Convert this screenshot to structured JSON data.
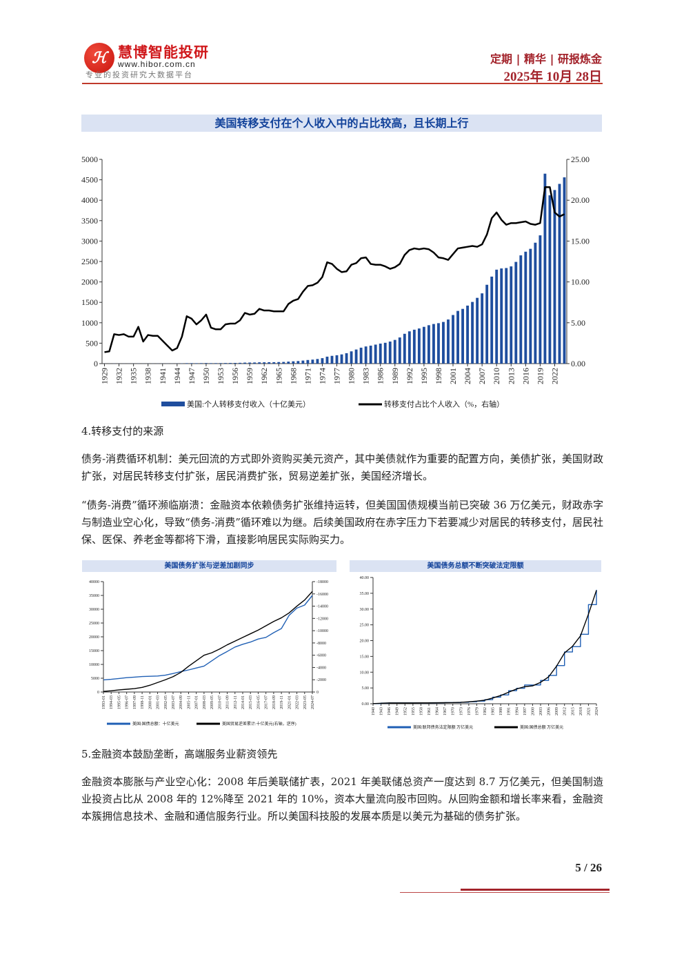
{
  "header": {
    "logo_mark": "HB",
    "brand": "慧博智能投研",
    "url": "www.hibor.com.cn",
    "slogan": "专业的投资研究大数据平台",
    "tagline": "定期 | 精华 | 研报炼金",
    "date": "2025年 10月 28日"
  },
  "colors": {
    "accent": "#a3232b",
    "bar": "#1f4e9e",
    "line": "#000000",
    "banner_bg": "#dbe3f3",
    "banner_text": "#12429a"
  },
  "chart_data": [
    {
      "type": "bar+line",
      "title": "美国转移支付在个人收入中的占比较高，且长期上行",
      "x_start": 1929,
      "x_tick_labels": [
        "1929",
        "1932",
        "1935",
        "1938",
        "1941",
        "1944",
        "1947",
        "1950",
        "1953",
        "1956",
        "1959",
        "1962",
        "1965",
        "1968",
        "1971",
        "1974",
        "1977",
        "1980",
        "1983",
        "1986",
        "1989",
        "1992",
        "1995",
        "1998",
        "2001",
        "2004",
        "2007",
        "2010",
        "2013",
        "2016",
        "2019",
        "2022"
      ],
      "y_left": {
        "min": 0,
        "max": 5000,
        "ticks": [
          "0",
          "500",
          "1000",
          "1500",
          "2000",
          "2500",
          "3000",
          "3500",
          "4000",
          "4500",
          "5000"
        ]
      },
      "y_right": {
        "min": 0,
        "max": 25,
        "ticks": [
          "0.00",
          "5.00",
          "10.00",
          "15.00",
          "20.00",
          "25.00"
        ]
      },
      "series": [
        {
          "name": "美国:个人转移支付收入（十亿美元）",
          "type": "bar",
          "axis": "left",
          "values": [
            1.4,
            1.5,
            2.8,
            2.2,
            2.0,
            2.0,
            2.2,
            3.2,
            2.2,
            2.6,
            2.5,
            2.7,
            2.8,
            2.7,
            2.6,
            3.4,
            5.8,
            11.1,
            11.7,
            10.6,
            12.1,
            14.3,
            11.6,
            12.1,
            12.9,
            15.1,
            16.1,
            17.1,
            19.6,
            24.4,
            25.8,
            27.6,
            31.6,
            32.5,
            34.2,
            35.4,
            38.0,
            41.1,
            48.6,
            56.1,
            62.3,
            74.7,
            88.1,
            97.9,
            112.6,
            133.3,
            170,
            190,
            205,
            225,
            255,
            300,
            345,
            390,
            420,
            440,
            465,
            490,
            510,
            540,
            580,
            640,
            730,
            790,
            830,
            860,
            900,
            940,
            970,
            990,
            1020,
            1080,
            1190,
            1290,
            1340,
            1420,
            1510,
            1610,
            1720,
            1930,
            2130,
            2300,
            2330,
            2340,
            2380,
            2490,
            2650,
            2740,
            2810,
            2960,
            3140,
            4650,
            4120,
            4250,
            4400,
            4560
          ]
        },
        {
          "name": "转移支付占比个人收入（%，右轴）",
          "type": "line",
          "axis": "right",
          "values": [
            1.4,
            1.5,
            3.6,
            3.5,
            3.6,
            3.3,
            3.3,
            4.5,
            2.7,
            3.5,
            3.4,
            3.4,
            2.8,
            2.2,
            1.6,
            1.9,
            3.3,
            5.8,
            5.5,
            4.8,
            5.3,
            6.0,
            4.4,
            4.2,
            4.2,
            4.8,
            4.9,
            4.9,
            5.3,
            6.2,
            6.0,
            6.1,
            6.7,
            6.5,
            6.5,
            6.4,
            6.4,
            6.4,
            7.3,
            7.7,
            7.9,
            8.8,
            9.5,
            9.6,
            9.9,
            10.6,
            12.4,
            12.2,
            11.6,
            11.2,
            11.3,
            12.1,
            12.3,
            12.9,
            13.0,
            12.2,
            12.1,
            12.1,
            11.9,
            11.6,
            11.8,
            12.2,
            13.3,
            13.9,
            14.1,
            14.0,
            14.1,
            14.0,
            13.6,
            13.0,
            12.9,
            12.7,
            13.4,
            14.1,
            14.2,
            14.3,
            14.4,
            14.3,
            14.6,
            15.8,
            17.8,
            18.5,
            17.6,
            17.0,
            17.2,
            17.2,
            17.3,
            17.4,
            17.1,
            17.0,
            17.2,
            21.6,
            21.6,
            18.5,
            18.0,
            18.3
          ]
        }
      ],
      "legend_position": "bottom"
    },
    {
      "type": "line",
      "title": "美国债务扩张与逆差加剧同步",
      "x_tick_labels": [
        "1993-01",
        "1994-03",
        "1995-05",
        "1996-07",
        "1997-09",
        "1998-11",
        "2000-01",
        "2001-03",
        "2002-05",
        "2003-07",
        "2004-09",
        "2005-11",
        "2007-01",
        "2008-03",
        "2009-05",
        "2010-07",
        "2011-09",
        "2012-11",
        "2014-01",
        "2015-03",
        "2016-05",
        "2017-07",
        "2018-09",
        "2019-11",
        "2021-01",
        "2022-03",
        "2023-05",
        "2024-07"
      ],
      "y_left": {
        "min": 0,
        "max": 40000,
        "ticks": [
          "0",
          "5000",
          "10000",
          "15000",
          "20000",
          "25000",
          "30000",
          "35000",
          "40000"
        ]
      },
      "y_right": {
        "min": 0,
        "max": 18000,
        "reversed": true,
        "ticks": [
          "0",
          "-2000",
          "-4000",
          "-6000",
          "-8000",
          "-10000",
          "-12000",
          "-14000",
          "-16000",
          "-18000"
        ]
      },
      "series": [
        {
          "name": "美国:国债总额：十亿美元",
          "axis": "left",
          "color": "#1f5fb4",
          "values": [
            4400,
            4600,
            4900,
            5200,
            5400,
            5600,
            5700,
            5800,
            6100,
            6700,
            7400,
            8000,
            8700,
            9400,
            11300,
            13200,
            14700,
            16300,
            17300,
            18100,
            19200,
            19800,
            21500,
            23000,
            27800,
            30400,
            31500,
            35000
          ]
        },
        {
          "name": "美国贸易逆差累计:十亿美元(右轴，逆序)",
          "axis": "right",
          "color": "#000000",
          "values": [
            100,
            200,
            350,
            450,
            550,
            750,
            1100,
            1550,
            2000,
            2500,
            3200,
            4200,
            5100,
            6000,
            6400,
            7000,
            7700,
            8300,
            8900,
            9500,
            10100,
            10800,
            11500,
            12100,
            12900,
            14000,
            15000,
            16400
          ]
        }
      ],
      "legend_position": "bottom"
    },
    {
      "type": "line",
      "title": "美国债务总额不断突破法定限额",
      "x_tick_labels": [
        "1940",
        "1943",
        "1946",
        "1949",
        "1952",
        "1955",
        "1958",
        "1961",
        "1964",
        "1967",
        "1970",
        "1973",
        "1976",
        "1979",
        "1982",
        "1985",
        "1988",
        "1991",
        "1994",
        "1997",
        "2000",
        "2003",
        "2006",
        "2009",
        "2012",
        "2015",
        "2018",
        "2021",
        "2024"
      ],
      "y_left": {
        "min": 0,
        "max": 40,
        "ticks": [
          "0.00",
          "5.00",
          "10.00",
          "15.00",
          "20.00",
          "25.00",
          "30.00",
          "35.00",
          "40.00"
        ]
      },
      "series": [
        {
          "name": "美国:联邦债务法定限额 万亿美元",
          "axis": "left",
          "color": "#1f5fb4",
          "step": true,
          "values": [
            0.05,
            0.21,
            0.28,
            0.28,
            0.28,
            0.28,
            0.28,
            0.3,
            0.32,
            0.36,
            0.38,
            0.47,
            0.64,
            0.83,
            1.29,
            2.08,
            2.8,
            4.15,
            4.9,
            5.95,
            5.95,
            7.38,
            8.97,
            12.1,
            16.4,
            18.1,
            22.0,
            31.4,
            36.1
          ]
        },
        {
          "name": "美国:国债总额 万亿美元",
          "axis": "left",
          "color": "#000000",
          "values": [
            0.05,
            0.14,
            0.27,
            0.25,
            0.26,
            0.27,
            0.28,
            0.29,
            0.31,
            0.34,
            0.37,
            0.46,
            0.62,
            0.83,
            1.14,
            1.82,
            2.6,
            3.67,
            4.69,
            5.41,
            5.67,
            6.78,
            8.5,
            11.9,
            16.1,
            18.2,
            21.5,
            28.4,
            35.9
          ]
        }
      ],
      "legend_position": "bottom"
    }
  ],
  "body": {
    "section4_title": "4.转移支付的来源",
    "para1": "债务-消费循环机制：美元回流的方式即外资购买美元资产，其中美债就作为重要的配置方向，美债扩张，美国财政扩张，对居民转移支付扩张，居民消费扩张，贸易逆差扩张，美国经济增长。",
    "para2": "“债务-消费”循环濒临崩溃：金融资本依赖债务扩张维持运转，但美国国债规模当前已突破 36 万亿美元，财政赤字与制造业空心化，导致“债务-消费”循环难以为继。后续美国政府在赤字压力下若要减少对居民的转移支付，居民社保、医保、养老金等都将下滑，直接影响居民实际购买力。",
    "section5_title": "5.金融资本鼓励垄断，高端服务业薪资领先",
    "para3": "金融资本膨胀与产业空心化：2008 年后美联储扩表，2021 年美联储总资产一度达到 8.7 万亿美元，但美国制造业投资占比从 2008 年的 12%降至 2021 年的 10%，资本大量流向股市回购。从回购金额和增长率来看，金融资本簇拥信息技术、金融和通信服务行业。所以美国科技股的发展本质是以美元为基础的债务扩张。"
  },
  "footer": {
    "page": "5 / 26"
  }
}
